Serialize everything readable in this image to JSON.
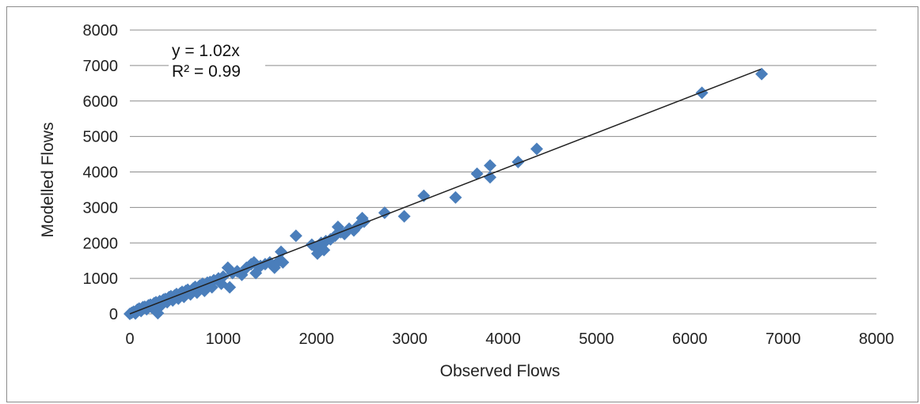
{
  "chart_data": {
    "type": "scatter",
    "xlabel": "Observed Flows",
    "ylabel": "Modelled Flows",
    "xlim": [
      0,
      8000
    ],
    "ylim": [
      0,
      8000
    ],
    "x_ticks": [
      0,
      1000,
      2000,
      3000,
      4000,
      5000,
      6000,
      7000,
      8000
    ],
    "y_ticks": [
      0,
      1000,
      2000,
      3000,
      4000,
      5000,
      6000,
      7000,
      8000
    ],
    "x_tick_labels": [
      "0",
      "1000",
      "2000",
      "3000",
      "4000",
      "5000",
      "6000",
      "7000",
      "8000"
    ],
    "y_tick_labels": [
      "0",
      "1000",
      "2000",
      "3000",
      "4000",
      "5000",
      "6000",
      "7000",
      "8000"
    ],
    "grid": "horizontal",
    "marker": "diamond",
    "marker_color": "#4a7ebb",
    "trendline": {
      "slope": 1.02,
      "x_range": [
        0,
        6760
      ],
      "color": "#222222",
      "equation_label": "y = 1.02x",
      "r2_label": "R² = 0.99"
    },
    "points": [
      [
        0,
        0
      ],
      [
        20,
        30
      ],
      [
        40,
        60
      ],
      [
        60,
        10
      ],
      [
        80,
        120
      ],
      [
        100,
        150
      ],
      [
        120,
        80
      ],
      [
        140,
        190
      ],
      [
        160,
        200
      ],
      [
        180,
        130
      ],
      [
        200,
        240
      ],
      [
        220,
        260
      ],
      [
        240,
        170
      ],
      [
        260,
        300
      ],
      [
        280,
        330
      ],
      [
        300,
        20
      ],
      [
        320,
        360
      ],
      [
        340,
        250
      ],
      [
        360,
        400
      ],
      [
        380,
        420
      ],
      [
        400,
        330
      ],
      [
        420,
        470
      ],
      [
        440,
        500
      ],
      [
        460,
        380
      ],
      [
        480,
        520
      ],
      [
        500,
        560
      ],
      [
        520,
        430
      ],
      [
        540,
        580
      ],
      [
        560,
        620
      ],
      [
        580,
        480
      ],
      [
        600,
        650
      ],
      [
        620,
        680
      ],
      [
        650,
        550
      ],
      [
        680,
        720
      ],
      [
        700,
        760
      ],
      [
        720,
        600
      ],
      [
        750,
        800
      ],
      [
        780,
        850
      ],
      [
        800,
        650
      ],
      [
        830,
        880
      ],
      [
        860,
        900
      ],
      [
        880,
        750
      ],
      [
        900,
        950
      ],
      [
        950,
        1000
      ],
      [
        980,
        850
      ],
      [
        1000,
        1050
      ],
      [
        1050,
        1300
      ],
      [
        1070,
        750
      ],
      [
        1100,
        1150
      ],
      [
        1150,
        1200
      ],
      [
        1200,
        1100
      ],
      [
        1250,
        1300
      ],
      [
        1300,
        1400
      ],
      [
        1330,
        1450
      ],
      [
        1350,
        1150
      ],
      [
        1400,
        1350
      ],
      [
        1450,
        1400
      ],
      [
        1500,
        1450
      ],
      [
        1550,
        1300
      ],
      [
        1600,
        1500
      ],
      [
        1620,
        1750
      ],
      [
        1640,
        1450
      ],
      [
        1780,
        2200
      ],
      [
        1950,
        1950
      ],
      [
        2000,
        1850
      ],
      [
        2010,
        1700
      ],
      [
        2050,
        2000
      ],
      [
        2080,
        1800
      ],
      [
        2100,
        2050
      ],
      [
        2150,
        2100
      ],
      [
        2200,
        2200
      ],
      [
        2230,
        2450
      ],
      [
        2260,
        2300
      ],
      [
        2300,
        2250
      ],
      [
        2350,
        2400
      ],
      [
        2400,
        2350
      ],
      [
        2450,
        2500
      ],
      [
        2490,
        2700
      ],
      [
        2510,
        2600
      ],
      [
        2730,
        2850
      ],
      [
        2940,
        2750
      ],
      [
        3150,
        3330
      ],
      [
        3490,
        3280
      ],
      [
        3720,
        3950
      ],
      [
        3860,
        3850
      ],
      [
        3860,
        4180
      ],
      [
        4160,
        4280
      ],
      [
        4360,
        4650
      ],
      [
        6130,
        6230
      ],
      [
        6770,
        6760
      ]
    ]
  }
}
